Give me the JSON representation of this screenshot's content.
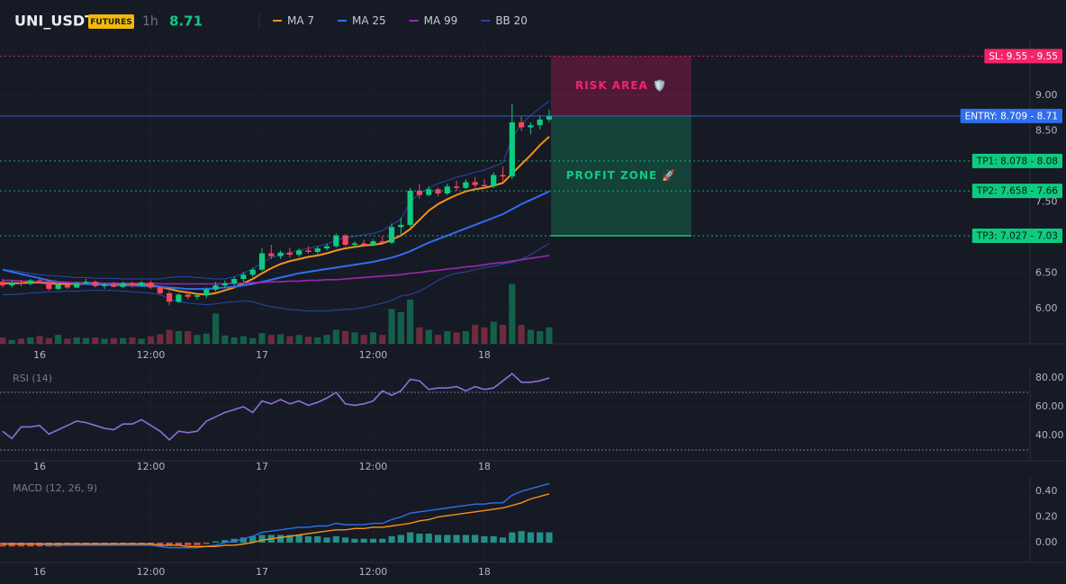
{
  "header": {
    "symbol": "UNI_USDT",
    "badge": "FUTURES",
    "interval": "1h",
    "price": "8.71"
  },
  "chart_data": [
    {
      "type": "candlestick",
      "up_color": "#0ecb81",
      "down_color": "#f6465d",
      "xlim": [
        -0.28,
        110.9
      ],
      "xticks": [
        {
          "value": 4,
          "label": "16"
        },
        {
          "value": 16,
          "label": "12:00"
        },
        {
          "value": 28,
          "label": "17"
        },
        {
          "value": 40,
          "label": "12:00"
        },
        {
          "value": 52,
          "label": "18"
        }
      ],
      "ylim": [
        5.51,
        9.77
      ],
      "yticks": [
        {
          "value": 9,
          "label": "9.00"
        },
        {
          "value": 8.5,
          "label": "8.50"
        },
        {
          "value": 7.5,
          "label": "7.50"
        },
        {
          "value": 6.5,
          "label": "6.50"
        },
        {
          "value": 6,
          "label": "6.00"
        }
      ],
      "candles": {
        "open": [
          6.38,
          6.33,
          6.37,
          6.35,
          6.4,
          6.38,
          6.28,
          6.34,
          6.3,
          6.36,
          6.38,
          6.32,
          6.34,
          6.31,
          6.36,
          6.33,
          6.37,
          6.3,
          6.22,
          6.1,
          6.2,
          6.17,
          6.19,
          6.27,
          6.33,
          6.36,
          6.42,
          6.48,
          6.55,
          6.78,
          6.74,
          6.79,
          6.76,
          6.82,
          6.8,
          6.85,
          6.88,
          7.03,
          6.9,
          6.92,
          6.9,
          6.95,
          6.93,
          7.15,
          7.18,
          7.66,
          7.6,
          7.68,
          7.62,
          7.72,
          7.7,
          7.78,
          7.74,
          7.72,
          7.88,
          7.86,
          8.62,
          8.55,
          8.58,
          8.66
        ],
        "high": [
          6.42,
          6.4,
          6.41,
          6.42,
          6.43,
          6.4,
          6.36,
          6.38,
          6.38,
          6.42,
          6.4,
          6.36,
          6.38,
          6.38,
          6.38,
          6.39,
          6.4,
          6.32,
          6.25,
          6.22,
          6.24,
          6.22,
          6.3,
          6.38,
          6.4,
          6.45,
          6.52,
          6.58,
          6.85,
          6.9,
          6.82,
          6.86,
          6.85,
          6.88,
          6.88,
          6.92,
          7.06,
          7.05,
          6.95,
          6.97,
          6.98,
          7.02,
          7.2,
          7.28,
          7.7,
          7.75,
          7.72,
          7.7,
          7.76,
          7.8,
          7.82,
          7.85,
          7.82,
          7.92,
          8.0,
          8.88,
          8.7,
          8.62,
          8.72,
          8.8
        ],
        "low": [
          6.3,
          6.3,
          6.32,
          6.33,
          6.36,
          6.26,
          6.26,
          6.28,
          6.29,
          6.34,
          6.3,
          6.28,
          6.3,
          6.29,
          6.3,
          6.31,
          6.28,
          6.2,
          6.05,
          6.08,
          6.14,
          6.13,
          6.15,
          6.24,
          6.29,
          6.32,
          6.38,
          6.45,
          6.53,
          6.7,
          6.7,
          6.72,
          6.73,
          6.78,
          6.77,
          6.82,
          6.86,
          6.88,
          6.86,
          6.87,
          6.88,
          6.9,
          6.91,
          7.05,
          7.15,
          7.55,
          7.58,
          7.58,
          7.6,
          7.66,
          7.68,
          7.7,
          7.7,
          7.7,
          7.8,
          7.82,
          8.5,
          8.45,
          8.52,
          8.62
        ],
        "close": [
          6.33,
          6.37,
          6.35,
          6.4,
          6.38,
          6.28,
          6.34,
          6.3,
          6.36,
          6.38,
          6.32,
          6.34,
          6.31,
          6.36,
          6.33,
          6.37,
          6.3,
          6.22,
          6.1,
          6.2,
          6.17,
          6.19,
          6.27,
          6.33,
          6.36,
          6.42,
          6.48,
          6.55,
          6.78,
          6.74,
          6.79,
          6.76,
          6.82,
          6.8,
          6.85,
          6.88,
          7.03,
          6.9,
          6.92,
          6.9,
          6.95,
          6.93,
          7.15,
          7.18,
          7.66,
          7.6,
          7.68,
          7.62,
          7.72,
          7.7,
          7.78,
          7.74,
          7.72,
          7.88,
          7.86,
          8.62,
          8.55,
          8.58,
          8.66,
          8.71
        ]
      },
      "vlim": [
        0,
        100
      ],
      "volume": [
        10,
        6,
        8,
        10,
        12,
        9,
        14,
        8,
        10,
        9,
        10,
        8,
        9,
        9,
        10,
        8,
        12,
        15,
        22,
        20,
        20,
        14,
        16,
        48,
        13,
        10,
        12,
        9,
        17,
        14,
        15,
        12,
        14,
        11,
        10,
        14,
        22,
        20,
        18,
        14,
        18,
        14,
        55,
        50,
        70,
        26,
        22,
        14,
        20,
        18,
        20,
        30,
        26,
        35,
        30,
        95,
        30,
        22,
        20,
        26
      ],
      "bands": {
        "color": "#2848a8",
        "upper": [
          6.55,
          6.54,
          6.52,
          6.5,
          6.48,
          6.47,
          6.46,
          6.45,
          6.44,
          6.44,
          6.43,
          6.43,
          6.43,
          6.42,
          6.42,
          6.42,
          6.42,
          6.42,
          6.44,
          6.45,
          6.45,
          6.44,
          6.43,
          6.42,
          6.42,
          6.45,
          6.5,
          6.56,
          6.65,
          6.72,
          6.76,
          6.79,
          6.82,
          6.85,
          6.88,
          6.91,
          6.97,
          7.0,
          7.02,
          7.04,
          7.06,
          7.1,
          7.18,
          7.26,
          7.5,
          7.62,
          7.7,
          7.76,
          7.8,
          7.85,
          7.88,
          7.92,
          7.95,
          8.0,
          8.05,
          8.4,
          8.6,
          8.72,
          8.82,
          8.92
        ],
        "lower": [
          6.2,
          6.2,
          6.21,
          6.22,
          6.23,
          6.24,
          6.24,
          6.25,
          6.25,
          6.26,
          6.26,
          6.26,
          6.26,
          6.25,
          6.24,
          6.23,
          6.22,
          6.2,
          6.14,
          6.1,
          6.08,
          6.07,
          6.06,
          6.07,
          6.09,
          6.1,
          6.11,
          6.1,
          6.06,
          6.03,
          6.01,
          5.99,
          5.98,
          5.97,
          5.97,
          5.97,
          5.98,
          5.99,
          6.0,
          6.02,
          6.05,
          6.08,
          6.12,
          6.18,
          6.2,
          6.25,
          6.32,
          6.4,
          6.46,
          6.5,
          6.52,
          6.55,
          6.58,
          6.6,
          6.63,
          6.65,
          6.7,
          6.76,
          6.84,
          6.92
        ]
      },
      "series": [
        {
          "name": "MA 7",
          "color": "#f7931a",
          "values": [
            6.36,
            6.36,
            6.36,
            6.37,
            6.37,
            6.36,
            6.35,
            6.35,
            6.35,
            6.35,
            6.35,
            6.34,
            6.34,
            6.34,
            6.34,
            6.34,
            6.33,
            6.31,
            6.28,
            6.25,
            6.23,
            6.21,
            6.2,
            6.22,
            6.26,
            6.3,
            6.36,
            6.42,
            6.5,
            6.57,
            6.63,
            6.67,
            6.7,
            6.73,
            6.75,
            6.78,
            6.82,
            6.85,
            6.87,
            6.89,
            6.9,
            6.92,
            6.97,
            7.03,
            7.12,
            7.25,
            7.38,
            7.47,
            7.54,
            7.6,
            7.65,
            7.68,
            7.7,
            7.73,
            7.77,
            7.9,
            8.03,
            8.16,
            8.3,
            8.42
          ]
        },
        {
          "name": "MA 25",
          "color": "#2f6fed",
          "values": [
            6.55,
            6.52,
            6.49,
            6.46,
            6.43,
            6.4,
            6.38,
            6.37,
            6.36,
            6.35,
            6.34,
            6.34,
            6.33,
            6.33,
            6.33,
            6.32,
            6.32,
            6.31,
            6.3,
            6.29,
            6.28,
            6.28,
            6.28,
            6.29,
            6.3,
            6.31,
            6.33,
            6.35,
            6.38,
            6.41,
            6.44,
            6.47,
            6.5,
            6.52,
            6.54,
            6.56,
            6.58,
            6.6,
            6.62,
            6.64,
            6.66,
            6.69,
            6.72,
            6.76,
            6.81,
            6.87,
            6.93,
            6.98,
            7.03,
            7.08,
            7.13,
            7.18,
            7.23,
            7.28,
            7.33,
            7.4,
            7.47,
            7.53,
            7.59,
            7.65
          ]
        },
        {
          "name": "MA 99",
          "color": "#9c27b0",
          "values": [
            6.4,
            6.4,
            6.39,
            6.39,
            6.38,
            6.38,
            6.38,
            6.37,
            6.37,
            6.37,
            6.37,
            6.36,
            6.36,
            6.36,
            6.36,
            6.36,
            6.36,
            6.35,
            6.35,
            6.35,
            6.35,
            6.35,
            6.35,
            6.35,
            6.35,
            6.36,
            6.36,
            6.37,
            6.37,
            6.38,
            6.38,
            6.39,
            6.39,
            6.4,
            6.4,
            6.41,
            6.41,
            6.42,
            6.43,
            6.44,
            6.45,
            6.46,
            6.47,
            6.48,
            6.5,
            6.51,
            6.53,
            6.54,
            6.56,
            6.57,
            6.59,
            6.6,
            6.62,
            6.64,
            6.65,
            6.67,
            6.69,
            6.71,
            6.73,
            6.75
          ]
        },
        {
          "name": "BB 20",
          "color": "#2848a8",
          "values": []
        }
      ],
      "levels": [
        {
          "label": "SL: 9.55 - 9.55",
          "value": 9.55,
          "color": "#f6246a",
          "style": "dotted"
        },
        {
          "label": "ENTRY: 8.709 - 8.71",
          "value": 8.709,
          "color": "#2f6fed",
          "style": "solid"
        },
        {
          "label": "TP1: 8.078 - 8.08",
          "value": 8.078,
          "color": "#0ecb81",
          "style": "dotted"
        },
        {
          "label": "TP2: 7.658 - 7.66",
          "value": 7.658,
          "color": "#0ecb81",
          "style": "dotted"
        },
        {
          "label": "TP3: 7.027 - 7.03",
          "value": 7.027,
          "color": "#0ecb81",
          "style": "dotted"
        }
      ],
      "annotations": [
        "RISK AREA 🛡️",
        "PROFIT ZONE 🚀"
      ]
    },
    {
      "type": "rsi",
      "title": "RSI (14)",
      "xlim": [
        -0.28,
        110.9
      ],
      "xticks": [
        {
          "value": 4,
          "label": "16"
        },
        {
          "value": 16,
          "label": "12:00"
        },
        {
          "value": 28,
          "label": "17"
        },
        {
          "value": 40,
          "label": "12:00"
        },
        {
          "value": 52,
          "label": "18"
        }
      ],
      "ylim": [
        22.5,
        87.5
      ],
      "yticks": [
        {
          "value": 80,
          "label": "80.00"
        },
        {
          "value": 60,
          "label": "60.00"
        },
        {
          "value": 40,
          "label": "40.00"
        }
      ],
      "bands": [
        70,
        30
      ],
      "series": [
        {
          "color": "#8e6fd8",
          "values": [
            43,
            38,
            46,
            46,
            47,
            41,
            44,
            47,
            50,
            49,
            47,
            45,
            44,
            48,
            48,
            51,
            47,
            43,
            37,
            43,
            42,
            43,
            50,
            53,
            56,
            58,
            60,
            56,
            64,
            62,
            65,
            62,
            64,
            61,
            63,
            66,
            70,
            62,
            61,
            62,
            64,
            71,
            68,
            71,
            79,
            78,
            72,
            73,
            73,
            74,
            71,
            74,
            72,
            73,
            78,
            83,
            77,
            77,
            78,
            80
          ]
        }
      ]
    },
    {
      "type": "macd",
      "title": "MACD (12, 26, 9)",
      "xlim": [
        -0.28,
        110.9
      ],
      "xticks": [
        {
          "value": 4,
          "label": "16"
        },
        {
          "value": 16,
          "label": "12:00"
        },
        {
          "value": 28,
          "label": "17"
        },
        {
          "value": 40,
          "label": "12:00"
        },
        {
          "value": 52,
          "label": "18"
        }
      ],
      "ylim": [
        -0.154,
        0.512
      ],
      "yticks": [
        {
          "value": 0.4,
          "label": "0.40"
        },
        {
          "value": 0.2,
          "label": "0.20"
        },
        {
          "value": 0,
          "label": "0.00"
        }
      ],
      "series": [
        {
          "color": "#2f6fed",
          "values": [
            -0.01,
            -0.01,
            -0.01,
            -0.01,
            -0.01,
            -0.02,
            -0.02,
            -0.02,
            -0.02,
            -0.02,
            -0.02,
            -0.02,
            -0.02,
            -0.02,
            -0.02,
            -0.02,
            -0.02,
            -0.03,
            -0.04,
            -0.04,
            -0.04,
            -0.04,
            -0.03,
            -0.02,
            0.0,
            0.01,
            0.03,
            0.05,
            0.08,
            0.09,
            0.1,
            0.11,
            0.12,
            0.12,
            0.13,
            0.13,
            0.15,
            0.14,
            0.14,
            0.14,
            0.15,
            0.15,
            0.18,
            0.2,
            0.23,
            0.24,
            0.25,
            0.26,
            0.27,
            0.28,
            0.29,
            0.3,
            0.3,
            0.31,
            0.31,
            0.37,
            0.4,
            0.42,
            0.44,
            0.46
          ]
        },
        {
          "color": "#f7931a",
          "values": [
            -0.01,
            -0.01,
            -0.01,
            -0.01,
            -0.01,
            -0.01,
            -0.01,
            -0.01,
            -0.01,
            -0.01,
            -0.01,
            -0.01,
            -0.01,
            -0.01,
            -0.01,
            -0.01,
            -0.01,
            -0.02,
            -0.02,
            -0.02,
            -0.03,
            -0.03,
            -0.03,
            -0.03,
            -0.02,
            -0.02,
            -0.01,
            0.0,
            0.02,
            0.03,
            0.04,
            0.05,
            0.06,
            0.07,
            0.08,
            0.09,
            0.1,
            0.1,
            0.11,
            0.11,
            0.12,
            0.12,
            0.13,
            0.14,
            0.15,
            0.17,
            0.18,
            0.2,
            0.21,
            0.22,
            0.23,
            0.24,
            0.25,
            0.26,
            0.27,
            0.29,
            0.31,
            0.34,
            0.36,
            0.38
          ]
        }
      ],
      "histogram": {
        "up_color": "#26a69a",
        "down_color": "#ef5350",
        "values": [
          -0.03,
          -0.03,
          -0.03,
          -0.03,
          -0.03,
          -0.03,
          -0.03,
          -0.02,
          -0.02,
          -0.02,
          -0.02,
          -0.02,
          -0.01,
          -0.01,
          -0.01,
          -0.01,
          -0.02,
          -0.02,
          -0.02,
          -0.02,
          -0.02,
          -0.02,
          -0.01,
          0.01,
          0.02,
          0.03,
          0.04,
          0.05,
          0.06,
          0.06,
          0.06,
          0.06,
          0.06,
          0.05,
          0.05,
          0.04,
          0.05,
          0.04,
          0.03,
          0.03,
          0.03,
          0.03,
          0.05,
          0.06,
          0.08,
          0.07,
          0.07,
          0.06,
          0.06,
          0.06,
          0.06,
          0.06,
          0.05,
          0.05,
          0.04,
          0.08,
          0.09,
          0.08,
          0.08,
          0.08
        ]
      }
    }
  ]
}
